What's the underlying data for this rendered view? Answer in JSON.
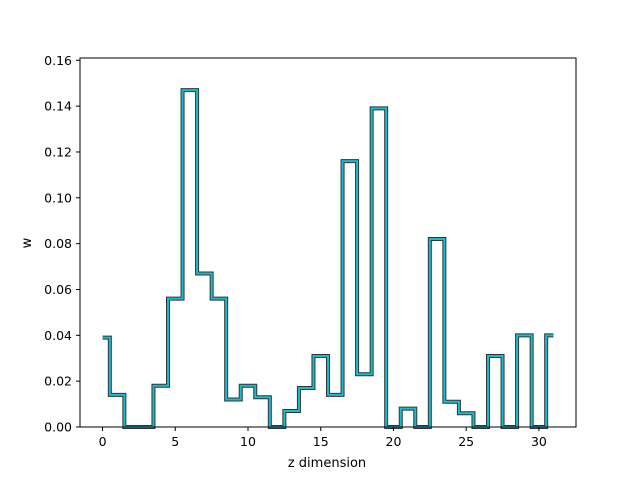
{
  "chart_data": {
    "type": "line",
    "style": "step",
    "xlabel": "z dimension",
    "ylabel": "w",
    "xlim": [
      -1.55,
      32.55
    ],
    "ylim": [
      0,
      0.161
    ],
    "xticks": [
      0,
      5,
      10,
      15,
      20,
      25,
      30
    ],
    "yticks": [
      0.0,
      0.02,
      0.04,
      0.06,
      0.08,
      0.1,
      0.12,
      0.14,
      0.16
    ],
    "ytick_labels": [
      "0.00",
      "0.02",
      "0.04",
      "0.06",
      "0.08",
      "0.10",
      "0.12",
      "0.14",
      "0.16"
    ],
    "grid": false,
    "x": [
      0,
      1,
      2,
      3,
      4,
      5,
      6,
      7,
      8,
      9,
      10,
      11,
      12,
      13,
      14,
      15,
      16,
      17,
      18,
      19,
      20,
      21,
      22,
      23,
      24,
      25,
      26,
      27,
      28,
      29,
      30,
      31
    ],
    "series": [
      {
        "values": [
          0.039,
          0.014,
          0.0,
          0.0,
          0.018,
          0.056,
          0.147,
          0.067,
          0.056,
          0.012,
          0.018,
          0.013,
          0.0,
          0.007,
          0.017,
          0.031,
          0.014,
          0.116,
          0.023,
          0.139,
          0.0,
          0.008,
          0.0,
          0.082,
          0.011,
          0.006,
          0.0,
          0.031,
          0.0,
          0.04,
          0.0,
          0.04
        ],
        "color": "#17becf",
        "outline_color": "#333333"
      }
    ]
  }
}
